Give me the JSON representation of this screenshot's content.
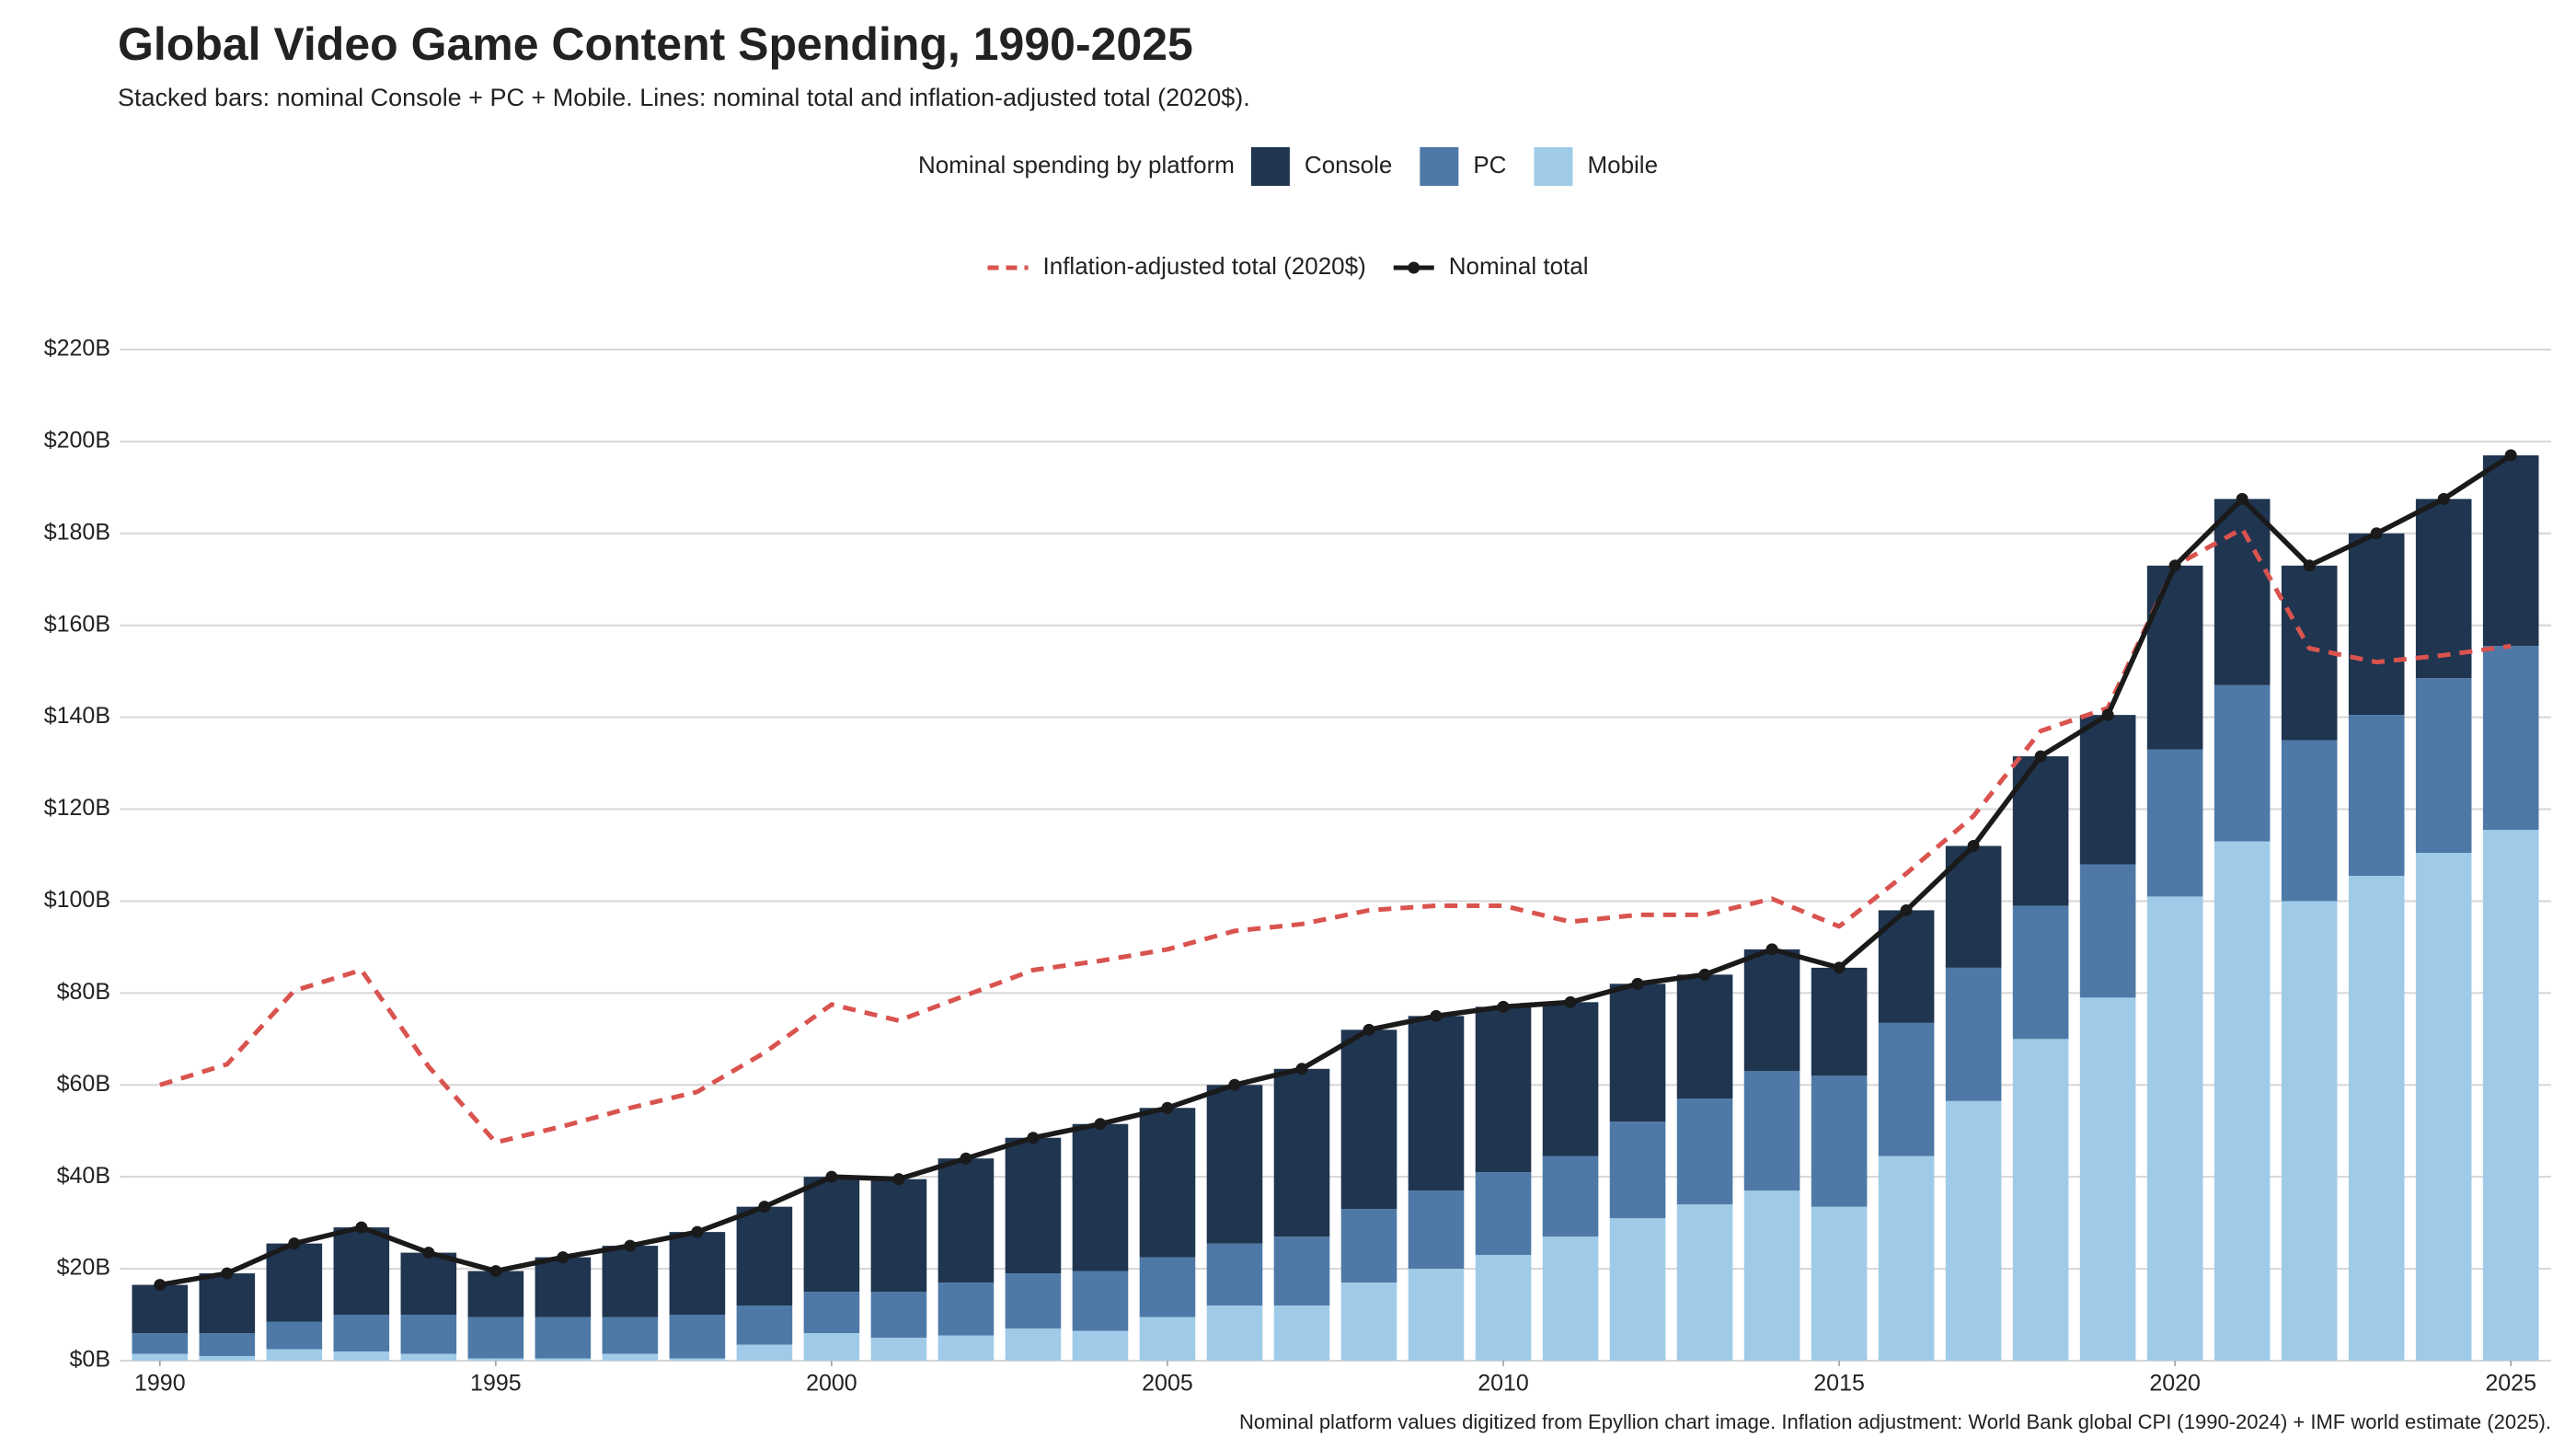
{
  "chart_data": {
    "type": "bar",
    "title": "Global Video Game Content Spending, 1990-2025",
    "subtitle": "Stacked bars: nominal Console + PC + Mobile. Lines: nominal total and inflation-adjusted total (2020$).",
    "caption": "Nominal platform values digitized from Epyllion chart image. Inflation adjustment: World Bank global CPI (1990-2024) + IMF world estimate (2025).",
    "legend_title": "Nominal spending by platform",
    "stacked": true,
    "grid": true,
    "x": [
      1990,
      1991,
      1992,
      1993,
      1994,
      1995,
      1996,
      1997,
      1998,
      1999,
      2000,
      2001,
      2002,
      2003,
      2004,
      2005,
      2006,
      2007,
      2008,
      2009,
      2010,
      2011,
      2012,
      2013,
      2014,
      2015,
      2016,
      2017,
      2018,
      2019,
      2020,
      2021,
      2022,
      2023,
      2024,
      2025
    ],
    "xlim": [
      1989.4,
      2025.6
    ],
    "xticks": [
      1990,
      1995,
      2000,
      2005,
      2010,
      2015,
      2020,
      2025
    ],
    "ylim": [
      0,
      222
    ],
    "yticks": [
      {
        "value": 0,
        "label": "$0B"
      },
      {
        "value": 20,
        "label": "$20B"
      },
      {
        "value": 40,
        "label": "$40B"
      },
      {
        "value": 60,
        "label": "$60B"
      },
      {
        "value": 80,
        "label": "$80B"
      },
      {
        "value": 100,
        "label": "$100B"
      },
      {
        "value": 120,
        "label": "$120B"
      },
      {
        "value": 140,
        "label": "$140B"
      },
      {
        "value": 160,
        "label": "$160B"
      },
      {
        "value": 180,
        "label": "$180B"
      },
      {
        "value": 200,
        "label": "$200B"
      },
      {
        "value": 220,
        "label": "$220B"
      }
    ],
    "series": [
      {
        "name": "Console",
        "color": "#1f3550",
        "values": [
          10.5,
          13,
          17,
          19,
          13.5,
          10,
          13,
          15.5,
          18,
          21.5,
          25,
          24.5,
          27,
          29.5,
          32,
          32.5,
          34.5,
          36.5,
          39,
          38,
          36,
          33.5,
          30,
          27,
          26.5,
          23.5,
          24.5,
          26.5,
          32.5,
          32.5,
          40,
          40.5,
          38,
          39.5,
          39,
          41.5
        ]
      },
      {
        "name": "PC",
        "color": "#4e79a7",
        "values": [
          4.5,
          5,
          6,
          8,
          8.5,
          9,
          9,
          8,
          9.5,
          8.5,
          9,
          10,
          11.5,
          12,
          13,
          13,
          13.5,
          15,
          16,
          17,
          18,
          17.5,
          21,
          23,
          26,
          28.5,
          29,
          29,
          29,
          29,
          32,
          34,
          35,
          35,
          38,
          40
        ]
      },
      {
        "name": "Mobile",
        "color": "#a0cbe8",
        "values": [
          1.5,
          1,
          2.5,
          2,
          1.5,
          0.5,
          0.5,
          1.5,
          0.5,
          3.5,
          6,
          5,
          5.5,
          7,
          6.5,
          9.5,
          12,
          12,
          17,
          20,
          23,
          27,
          31,
          34,
          37,
          33.5,
          44.5,
          56.5,
          70,
          79,
          101,
          113,
          100,
          105.5,
          110.5,
          115.5
        ]
      }
    ],
    "lines": [
      {
        "name": "Inflation-adjusted total (2020$)",
        "color": "#d9534f",
        "style": "dashed",
        "values": [
          60,
          64.5,
          80.5,
          85,
          64,
          47.5,
          51,
          55,
          58.5,
          67,
          77.5,
          74,
          79.5,
          85,
          87,
          89.5,
          93.5,
          95,
          98,
          99,
          99,
          95.5,
          97,
          97,
          100.5,
          94.5,
          106,
          118.5,
          137,
          142,
          173,
          181,
          155,
          152,
          153.5,
          155.5
        ]
      },
      {
        "name": "Nominal total",
        "color": "#1a1a1a",
        "style": "solid",
        "markers": true,
        "values": [
          16.5,
          19,
          25.5,
          29,
          23.5,
          19.5,
          22.5,
          25,
          28,
          33.5,
          40,
          39.5,
          44,
          48.5,
          51.5,
          55,
          60,
          63.5,
          72,
          75,
          77,
          78,
          82,
          84,
          89.5,
          85.5,
          98,
          112,
          131.5,
          140.5,
          173,
          187.5,
          173,
          180,
          187.5,
          197
        ]
      }
    ]
  }
}
